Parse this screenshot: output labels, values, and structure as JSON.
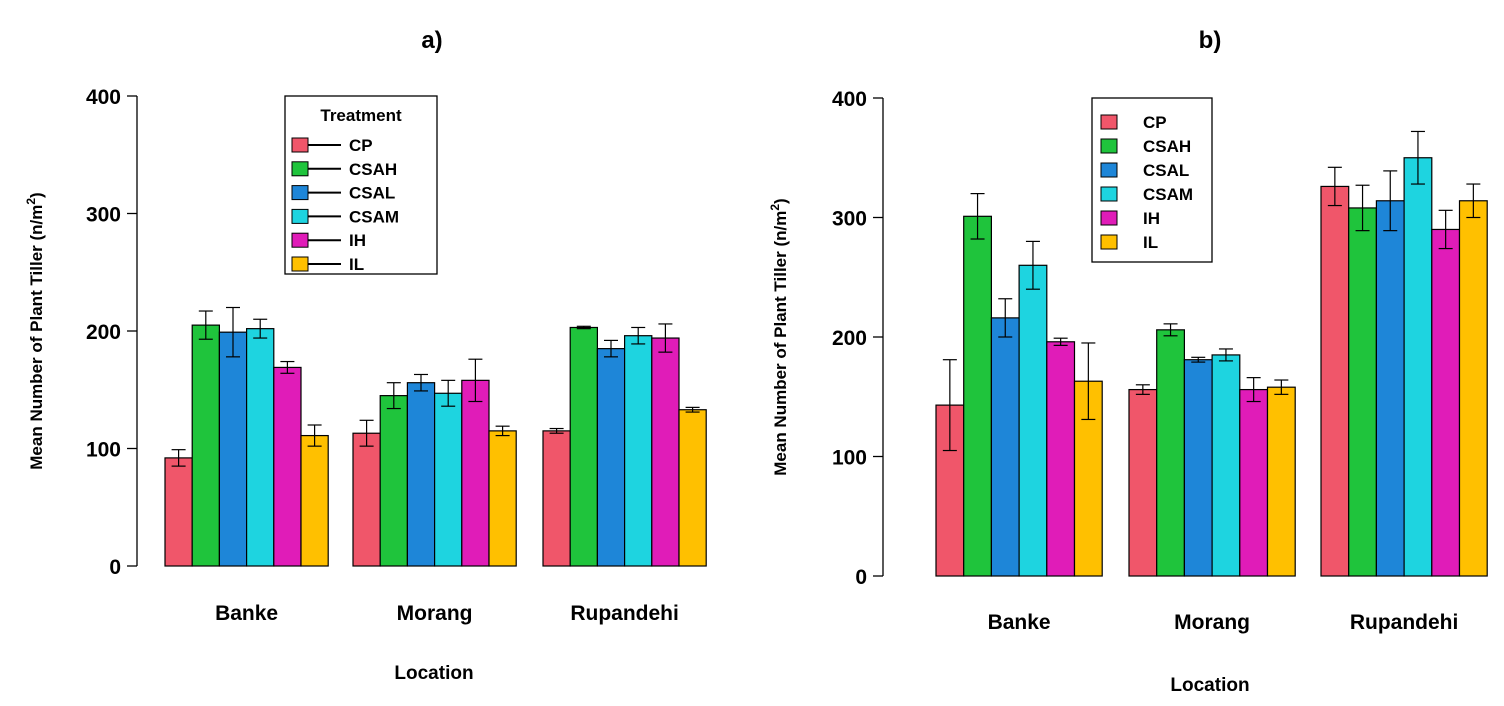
{
  "chart_data": [
    {
      "panel": "a)",
      "type": "bar",
      "title": "a)",
      "xlabel": "Location",
      "ylabel": "Mean Number of Plant Tiller (n/m",
      "ylabel_sup": "2",
      "ylabel_close": ")",
      "ylim": [
        0,
        400
      ],
      "yticks": [
        "0",
        "100",
        "200",
        "300",
        "400"
      ],
      "categories": [
        "Banke",
        "Morang",
        "Rupandehi"
      ],
      "legend_title": "Treatment",
      "legend_position": "top-center",
      "series": [
        {
          "name": "CP",
          "color": "#F0566A",
          "values": [
            92,
            113,
            115
          ],
          "errors": [
            7,
            11,
            2
          ]
        },
        {
          "name": "CSAH",
          "color": "#1FC43C",
          "values": [
            205,
            145,
            203
          ],
          "errors": [
            12,
            11,
            1
          ]
        },
        {
          "name": "CSAL",
          "color": "#1E86D8",
          "values": [
            199,
            156,
            185
          ],
          "errors": [
            21,
            7,
            7
          ]
        },
        {
          "name": "CSAM",
          "color": "#1ED4E0",
          "values": [
            202,
            147,
            196
          ],
          "errors": [
            8,
            11,
            7
          ]
        },
        {
          "name": "IH",
          "color": "#E01CB8",
          "values": [
            169,
            158,
            194
          ],
          "errors": [
            5,
            18,
            12
          ]
        },
        {
          "name": "IL",
          "color": "#FFC000",
          "values": [
            111,
            115,
            133
          ],
          "errors": [
            9,
            4,
            2
          ]
        }
      ]
    },
    {
      "panel": "b)",
      "type": "bar",
      "title": "b)",
      "xlabel": "Location",
      "ylabel": "Mean Number of Plant Tiller (n/m",
      "ylabel_sup": "2",
      "ylabel_close": ")",
      "ylim": [
        0,
        400
      ],
      "yticks": [
        "0",
        "100",
        "200",
        "300",
        "400"
      ],
      "categories": [
        "Banke",
        "Morang",
        "Rupandehi"
      ],
      "legend_title": "",
      "legend_position": "top-left",
      "series": [
        {
          "name": "CP",
          "color": "#F0566A",
          "values": [
            143,
            156,
            326
          ],
          "errors": [
            38,
            4,
            16
          ]
        },
        {
          "name": "CSAH",
          "color": "#1FC43C",
          "values": [
            301,
            206,
            308
          ],
          "errors": [
            19,
            5,
            19
          ]
        },
        {
          "name": "CSAL",
          "color": "#1E86D8",
          "values": [
            216,
            181,
            314
          ],
          "errors": [
            16,
            2,
            25
          ]
        },
        {
          "name": "CSAM",
          "color": "#1ED4E0",
          "values": [
            260,
            185,
            350
          ],
          "errors": [
            20,
            5,
            22
          ]
        },
        {
          "name": "IH",
          "color": "#E01CB8",
          "values": [
            196,
            156,
            290
          ],
          "errors": [
            3,
            10,
            16
          ]
        },
        {
          "name": "IL",
          "color": "#FFC000",
          "values": [
            163,
            158,
            314
          ],
          "errors": [
            32,
            6,
            14
          ]
        }
      ]
    }
  ]
}
